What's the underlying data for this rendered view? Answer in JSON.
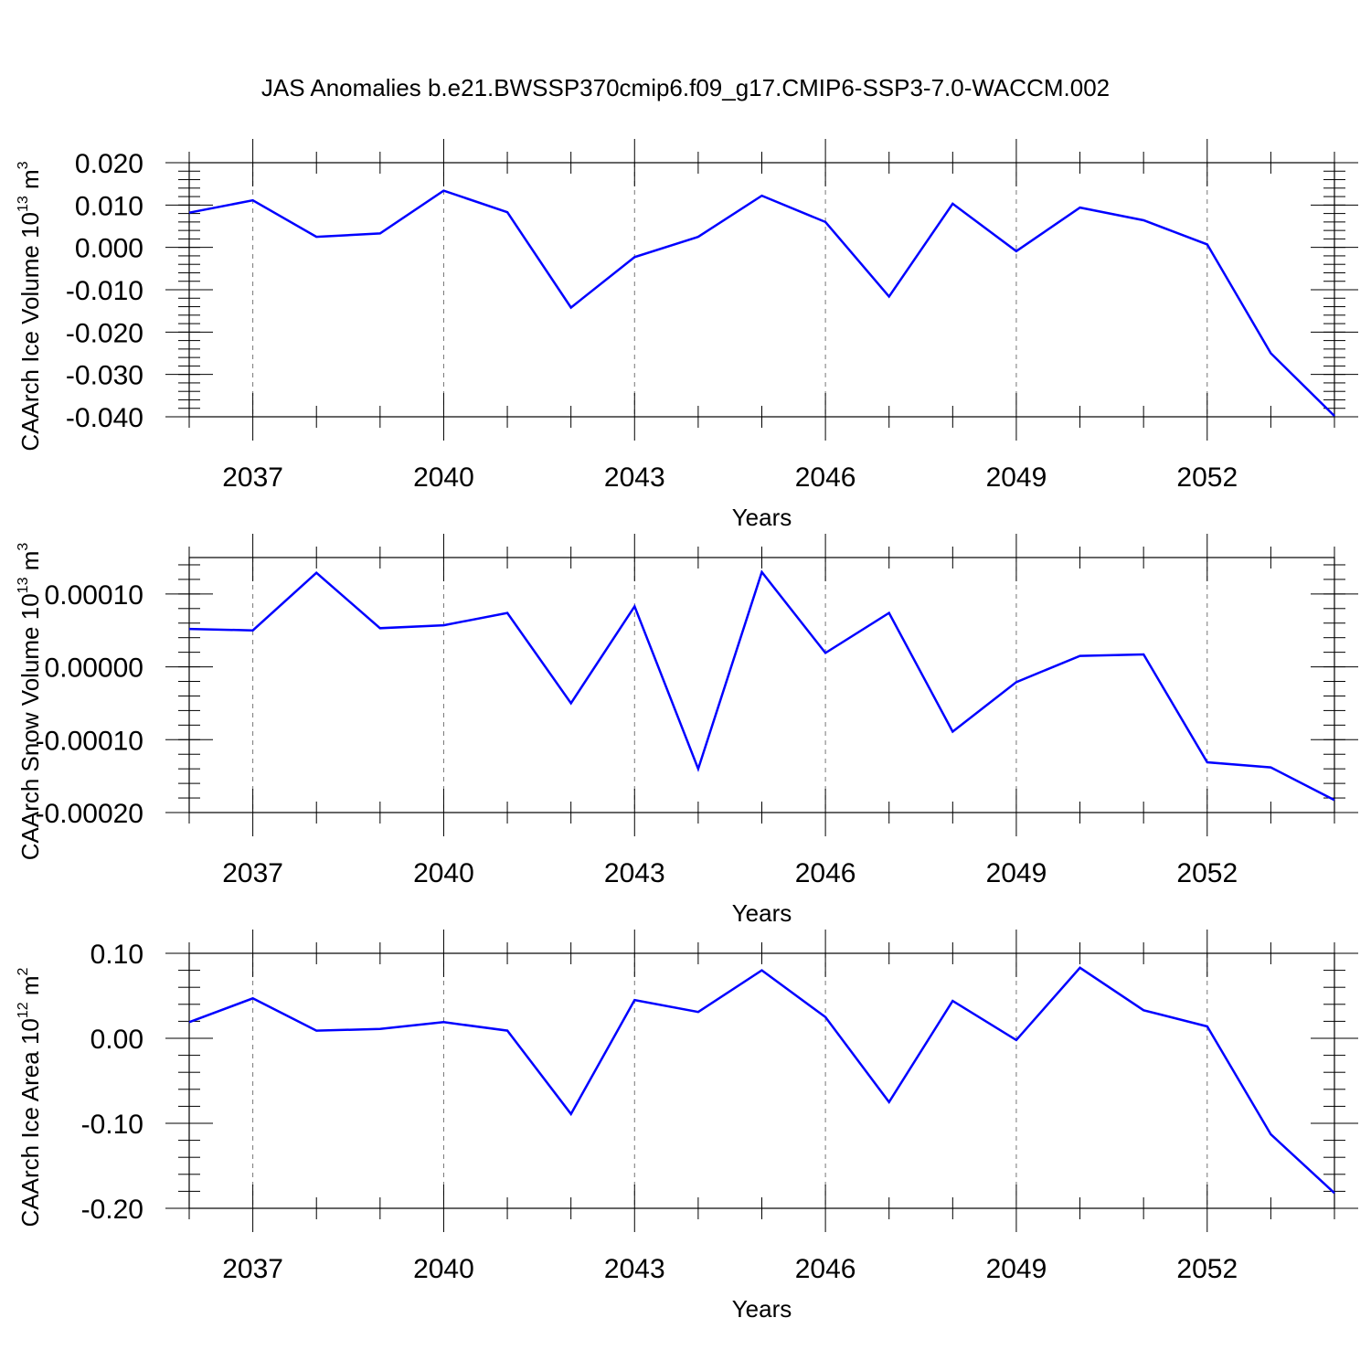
{
  "title": "JAS Anomalies b.e21.BWSSP370cmip6.f09_g17.CMIP6-SSP3-7.0-WACCM.002",
  "line_color": "#0000ff",
  "chart_data": [
    {
      "type": "line",
      "xlabel": "Years",
      "ylabel": "CAArch Ice Volume 10",
      "ylabel_exp": "13",
      "ylabel_unit": " m",
      "ylabel_unit_exp": "3",
      "xlim": [
        2036,
        2054
      ],
      "ylim": [
        -0.04,
        0.02
      ],
      "x_ticks": [
        2037,
        2040,
        2043,
        2046,
        2049,
        2052
      ],
      "x_tick_labels": [
        "2037",
        "2040",
        "2043",
        "2046",
        "2049",
        "2052"
      ],
      "y_ticks": [
        0.02,
        0.01,
        0.0,
        -0.01,
        -0.02,
        -0.03,
        -0.04
      ],
      "y_tick_labels": [
        "0.020",
        "0.010",
        "0.000",
        "-0.010",
        "-0.020",
        "-0.030",
        "-0.040"
      ],
      "grid": "vertical dashed at major x ticks",
      "series": [
        {
          "x": [
            2036,
            2037,
            2038,
            2039,
            2040,
            2041,
            2042,
            2043,
            2044,
            2045,
            2046,
            2047,
            2048,
            2049,
            2050,
            2051,
            2052,
            2053,
            2054
          ],
          "values": [
            0.0082,
            0.0111,
            0.0025,
            0.0033,
            0.0134,
            0.0083,
            -0.0142,
            -0.0023,
            0.0025,
            0.0122,
            0.006,
            -0.0116,
            0.0103,
            -0.0009,
            0.0094,
            0.0064,
            0.0007,
            -0.025,
            -0.0398
          ]
        }
      ]
    },
    {
      "type": "line",
      "xlabel": "Years",
      "ylabel": "CAArch Snow Volume 10",
      "ylabel_exp": "13",
      "ylabel_unit": " m",
      "ylabel_unit_exp": "3",
      "xlim": [
        2036,
        2054
      ],
      "ylim": [
        -0.0002,
        0.00015
      ],
      "x_ticks": [
        2037,
        2040,
        2043,
        2046,
        2049,
        2052
      ],
      "x_tick_labels": [
        "2037",
        "2040",
        "2043",
        "2046",
        "2049",
        "2052"
      ],
      "y_ticks": [
        0.0001,
        0.0,
        -0.0001,
        -0.0002
      ],
      "y_tick_labels": [
        "0.00010",
        "0.00000",
        "-0.00010",
        "-0.00020"
      ],
      "grid": "vertical dashed at major x ticks",
      "series": [
        {
          "x": [
            2036,
            2037,
            2038,
            2039,
            2040,
            2041,
            2042,
            2043,
            2044,
            2045,
            2046,
            2047,
            2048,
            2049,
            2050,
            2051,
            2052,
            2053,
            2054
          ],
          "values": [
            5.2e-05,
            5e-05,
            0.000129,
            5.3e-05,
            5.7e-05,
            7.4e-05,
            -5e-05,
            8.3e-05,
            -0.00014,
            0.00013,
            1.9e-05,
            7.4e-05,
            -8.9e-05,
            -2.1e-05,
            1.5e-05,
            1.7e-05,
            -0.000131,
            -0.000138,
            -0.000183
          ]
        }
      ]
    },
    {
      "type": "line",
      "xlabel": "Years",
      "ylabel": "CAArch Ice Area 10",
      "ylabel_exp": "12",
      "ylabel_unit": " m",
      "ylabel_unit_exp": "2",
      "xlim": [
        2036,
        2054
      ],
      "ylim": [
        -0.2,
        0.1
      ],
      "x_ticks": [
        2037,
        2040,
        2043,
        2046,
        2049,
        2052
      ],
      "x_tick_labels": [
        "2037",
        "2040",
        "2043",
        "2046",
        "2049",
        "2052"
      ],
      "y_ticks": [
        0.1,
        0.0,
        -0.1,
        -0.2
      ],
      "y_tick_labels": [
        "0.10",
        "0.00",
        "-0.10",
        "-0.20"
      ],
      "grid": "vertical dashed at major x ticks",
      "series": [
        {
          "x": [
            2036,
            2037,
            2038,
            2039,
            2040,
            2041,
            2042,
            2043,
            2044,
            2045,
            2046,
            2047,
            2048,
            2049,
            2050,
            2051,
            2052,
            2053,
            2054
          ],
          "values": [
            0.019,
            0.047,
            0.009,
            0.011,
            0.019,
            0.009,
            -0.089,
            0.045,
            0.031,
            0.08,
            0.025,
            -0.075,
            0.044,
            -0.002,
            0.083,
            0.033,
            0.014,
            -0.113,
            -0.182
          ]
        }
      ]
    }
  ]
}
